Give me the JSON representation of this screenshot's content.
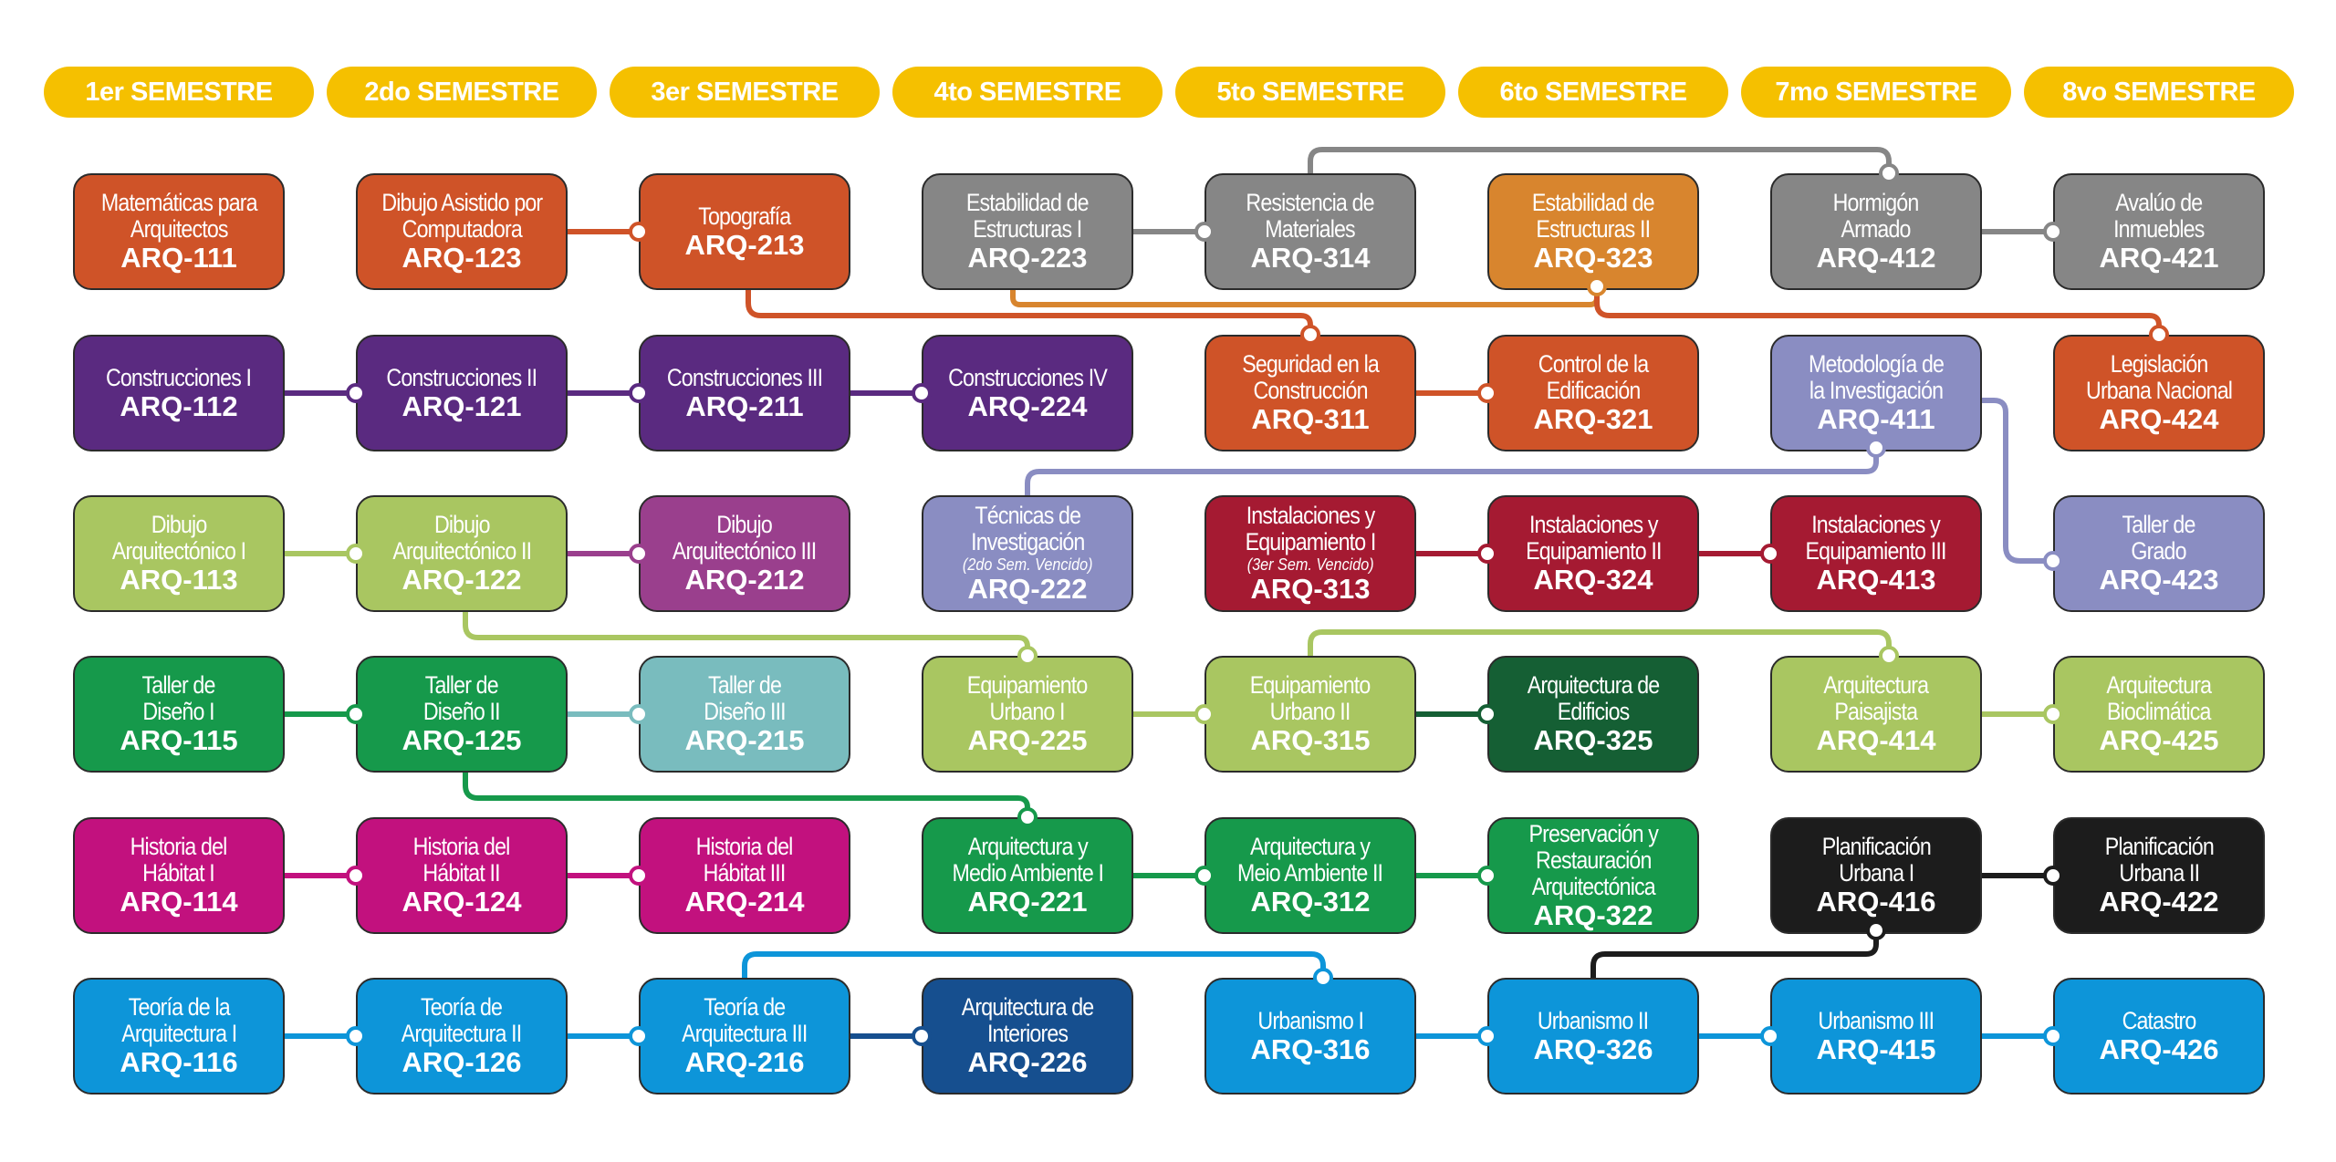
{
  "headers": [
    "1er SEMESTRE",
    "2do SEMESTRE",
    "3er SEMESTRE",
    "4to SEMESTRE",
    "5to SEMESTRE",
    "6to SEMESTRE",
    "7mo SEMESTRE",
    "8vo SEMESTRE"
  ],
  "colors": {
    "header": "#f5c000",
    "orange": "#cf5328",
    "purple": "#5a2a80",
    "lime": "#a9c661",
    "green": "#16994b",
    "magenta": "#c2117e",
    "blue": "#0d95d9",
    "gray": "#868686",
    "dorange": "#d8852e",
    "lavender": "#8a8dc2",
    "crimson": "#a51a32",
    "plum": "#9a3f8d",
    "teal": "#79bcbe",
    "dgreen": "#155f34",
    "navy": "#164f8f",
    "black": "#1c1c1c"
  },
  "courses": [
    {
      "id": "ARQ-111",
      "name": "Matemáticas para\nArquitectos",
      "col": 0,
      "row": 0,
      "color": "orange"
    },
    {
      "id": "ARQ-123",
      "name": "Dibujo Asistido por\nComputadora",
      "col": 1,
      "row": 0,
      "color": "orange"
    },
    {
      "id": "ARQ-213",
      "name": "Topografía",
      "col": 2,
      "row": 0,
      "color": "orange"
    },
    {
      "id": "ARQ-223",
      "name": "Estabilidad de\nEstructuras I",
      "col": 3,
      "row": 0,
      "color": "gray"
    },
    {
      "id": "ARQ-314",
      "name": "Resistencia de\nMateriales",
      "col": 4,
      "row": 0,
      "color": "gray"
    },
    {
      "id": "ARQ-323",
      "name": "Estabilidad de\nEstructuras II",
      "col": 5,
      "row": 0,
      "color": "dorange"
    },
    {
      "id": "ARQ-412",
      "name": "Hormigón\nArmado",
      "col": 6,
      "row": 0,
      "color": "gray"
    },
    {
      "id": "ARQ-421",
      "name": "Avalúo de\nInmuebles",
      "col": 7,
      "row": 0,
      "color": "gray"
    },
    {
      "id": "ARQ-112",
      "name": "Construcciones I",
      "col": 0,
      "row": 1,
      "color": "purple"
    },
    {
      "id": "ARQ-121",
      "name": "Construcciones II",
      "col": 1,
      "row": 1,
      "color": "purple"
    },
    {
      "id": "ARQ-211",
      "name": "Construcciones III",
      "col": 2,
      "row": 1,
      "color": "purple"
    },
    {
      "id": "ARQ-224",
      "name": "Construcciones IV",
      "col": 3,
      "row": 1,
      "color": "purple"
    },
    {
      "id": "ARQ-311",
      "name": "Seguridad en la\nConstrucción",
      "col": 4,
      "row": 1,
      "color": "orange"
    },
    {
      "id": "ARQ-321",
      "name": "Control de la\nEdificación",
      "col": 5,
      "row": 1,
      "color": "orange"
    },
    {
      "id": "ARQ-411",
      "name": "Metodología de\nla Investigación",
      "col": 6,
      "row": 1,
      "color": "lavender"
    },
    {
      "id": "ARQ-424",
      "name": "Legislación\nUrbana Nacional",
      "col": 7,
      "row": 1,
      "color": "orange"
    },
    {
      "id": "ARQ-113",
      "name": "Dibujo\nArquitectónico I",
      "col": 0,
      "row": 2,
      "color": "lime"
    },
    {
      "id": "ARQ-122",
      "name": "Dibujo\nArquitectónico II",
      "col": 1,
      "row": 2,
      "color": "lime"
    },
    {
      "id": "ARQ-212",
      "name": "Dibujo\nArquitectónico III",
      "col": 2,
      "row": 2,
      "color": "plum"
    },
    {
      "id": "ARQ-222",
      "name": "Técnicas de\nInvestigación",
      "note": "(2do Sem. Vencido)",
      "col": 3,
      "row": 2,
      "color": "lavender"
    },
    {
      "id": "ARQ-313",
      "name": "Instalaciones y\nEquipamiento I",
      "note": "(3er Sem. Vencido)",
      "col": 4,
      "row": 2,
      "color": "crimson"
    },
    {
      "id": "ARQ-324",
      "name": "Instalaciones y\nEquipamiento II",
      "col": 5,
      "row": 2,
      "color": "crimson"
    },
    {
      "id": "ARQ-413",
      "name": "Instalaciones y\nEquipamiento III",
      "col": 6,
      "row": 2,
      "color": "crimson"
    },
    {
      "id": "ARQ-423",
      "name": "Taller de\nGrado",
      "col": 7,
      "row": 2,
      "color": "lavender"
    },
    {
      "id": "ARQ-115",
      "name": "Taller de\nDiseño I",
      "col": 0,
      "row": 3,
      "color": "green"
    },
    {
      "id": "ARQ-125",
      "name": "Taller de\nDiseño II",
      "col": 1,
      "row": 3,
      "color": "green"
    },
    {
      "id": "ARQ-215",
      "name": "Taller de\nDiseño III",
      "col": 2,
      "row": 3,
      "color": "teal"
    },
    {
      "id": "ARQ-225",
      "name": "Equipamiento\nUrbano I",
      "col": 3,
      "row": 3,
      "color": "lime"
    },
    {
      "id": "ARQ-315",
      "name": "Equipamiento\nUrbano II",
      "col": 4,
      "row": 3,
      "color": "lime"
    },
    {
      "id": "ARQ-325",
      "name": "Arquitectura de\nEdificios",
      "col": 5,
      "row": 3,
      "color": "dgreen"
    },
    {
      "id": "ARQ-414",
      "name": "Arquitectura\nPaisajista",
      "col": 6,
      "row": 3,
      "color": "lime"
    },
    {
      "id": "ARQ-425",
      "name": "Arquitectura\nBioclimática",
      "col": 7,
      "row": 3,
      "color": "lime"
    },
    {
      "id": "ARQ-114",
      "name": "Historia del\nHábitat I",
      "col": 0,
      "row": 4,
      "color": "magenta"
    },
    {
      "id": "ARQ-124",
      "name": "Historia del\nHábitat II",
      "col": 1,
      "row": 4,
      "color": "magenta"
    },
    {
      "id": "ARQ-214",
      "name": "Historia del\nHábitat III",
      "col": 2,
      "row": 4,
      "color": "magenta"
    },
    {
      "id": "ARQ-221",
      "name": "Arquitectura y\nMedio Ambiente I",
      "col": 3,
      "row": 4,
      "color": "green"
    },
    {
      "id": "ARQ-312",
      "name": "Arquitectura y\nMeio Ambiente II",
      "col": 4,
      "row": 4,
      "color": "green"
    },
    {
      "id": "ARQ-322",
      "name": "Preservación y\nRestauración\nArquitectónica",
      "col": 5,
      "row": 4,
      "color": "green"
    },
    {
      "id": "ARQ-416",
      "name": "Planificación\nUrbana I",
      "col": 6,
      "row": 4,
      "color": "black"
    },
    {
      "id": "ARQ-422",
      "name": "Planificación\nUrbana II",
      "col": 7,
      "row": 4,
      "color": "black"
    },
    {
      "id": "ARQ-116",
      "name": "Teoría de la\nArquitectura I",
      "col": 0,
      "row": 5,
      "color": "blue"
    },
    {
      "id": "ARQ-126",
      "name": "Teoría de\nArquitectura II",
      "col": 1,
      "row": 5,
      "color": "blue"
    },
    {
      "id": "ARQ-216",
      "name": "Teoría de\nArquitectura III",
      "col": 2,
      "row": 5,
      "color": "blue"
    },
    {
      "id": "ARQ-226",
      "name": "Arquitectura de\nInteriores",
      "col": 3,
      "row": 5,
      "color": "navy"
    },
    {
      "id": "ARQ-316",
      "name": "Urbanismo I",
      "col": 4,
      "row": 5,
      "color": "blue"
    },
    {
      "id": "ARQ-326",
      "name": "Urbanismo II",
      "col": 5,
      "row": 5,
      "color": "blue"
    },
    {
      "id": "ARQ-415",
      "name": "Urbanismo III",
      "col": 6,
      "row": 5,
      "color": "blue"
    },
    {
      "id": "ARQ-426",
      "name": "Catastro",
      "col": 7,
      "row": 5,
      "color": "blue"
    }
  ],
  "links": [
    {
      "from": "ARQ-123",
      "to": "ARQ-213",
      "color": "orange"
    },
    {
      "from": "ARQ-223",
      "to": "ARQ-314",
      "color": "gray"
    },
    {
      "from": "ARQ-412",
      "to": "ARQ-421",
      "color": "gray"
    },
    {
      "from": "ARQ-314",
      "to": "ARQ-412",
      "color": "gray",
      "route": "top"
    },
    {
      "from": "ARQ-223",
      "to": "ARQ-323",
      "color": "dorange",
      "route": "bottom-in"
    },
    {
      "from": "ARQ-213",
      "to": "ARQ-311",
      "color": "orange",
      "route": "bottom-top"
    },
    {
      "from": "ARQ-323",
      "to": "ARQ-424",
      "color": "orange",
      "route": "bottom-top"
    },
    {
      "from": "ARQ-112",
      "to": "ARQ-121",
      "color": "purple"
    },
    {
      "from": "ARQ-121",
      "to": "ARQ-211",
      "color": "purple"
    },
    {
      "from": "ARQ-211",
      "to": "ARQ-224",
      "color": "purple"
    },
    {
      "from": "ARQ-311",
      "to": "ARQ-321",
      "color": "orange"
    },
    {
      "from": "ARQ-222",
      "to": "ARQ-411",
      "color": "lavender",
      "route": "top-bottom"
    },
    {
      "from": "ARQ-411",
      "to": "ARQ-423",
      "color": "lavender",
      "route": "side-down"
    },
    {
      "from": "ARQ-113",
      "to": "ARQ-122",
      "color": "lime"
    },
    {
      "from": "ARQ-122",
      "to": "ARQ-212",
      "color": "plum"
    },
    {
      "from": "ARQ-313",
      "to": "ARQ-324",
      "color": "crimson"
    },
    {
      "from": "ARQ-324",
      "to": "ARQ-413",
      "color": "crimson"
    },
    {
      "from": "ARQ-122",
      "to": "ARQ-225",
      "color": "lime",
      "route": "bottom-top"
    },
    {
      "from": "ARQ-115",
      "to": "ARQ-125",
      "color": "green"
    },
    {
      "from": "ARQ-125",
      "to": "ARQ-215",
      "color": "teal"
    },
    {
      "from": "ARQ-225",
      "to": "ARQ-315",
      "color": "lime"
    },
    {
      "from": "ARQ-315",
      "to": "ARQ-325",
      "color": "dgreen"
    },
    {
      "from": "ARQ-414",
      "to": "ARQ-425",
      "color": "lime"
    },
    {
      "from": "ARQ-315",
      "to": "ARQ-414",
      "color": "lime",
      "route": "top"
    },
    {
      "from": "ARQ-125",
      "to": "ARQ-221",
      "color": "green",
      "route": "bottom-top"
    },
    {
      "from": "ARQ-114",
      "to": "ARQ-124",
      "color": "magenta"
    },
    {
      "from": "ARQ-124",
      "to": "ARQ-214",
      "color": "magenta"
    },
    {
      "from": "ARQ-221",
      "to": "ARQ-312",
      "color": "green"
    },
    {
      "from": "ARQ-312",
      "to": "ARQ-322",
      "color": "green"
    },
    {
      "from": "ARQ-416",
      "to": "ARQ-422",
      "color": "black"
    },
    {
      "from": "ARQ-326",
      "to": "ARQ-416",
      "color": "black",
      "route": "top-bottom"
    },
    {
      "from": "ARQ-116",
      "to": "ARQ-126",
      "color": "blue"
    },
    {
      "from": "ARQ-126",
      "to": "ARQ-216",
      "color": "blue"
    },
    {
      "from": "ARQ-216",
      "to": "ARQ-226",
      "color": "navy"
    },
    {
      "from": "ARQ-216",
      "to": "ARQ-316",
      "color": "blue",
      "route": "top"
    },
    {
      "from": "ARQ-316",
      "to": "ARQ-326",
      "color": "blue"
    },
    {
      "from": "ARQ-326",
      "to": "ARQ-415",
      "color": "blue"
    },
    {
      "from": "ARQ-415",
      "to": "ARQ-426",
      "color": "blue"
    }
  ]
}
